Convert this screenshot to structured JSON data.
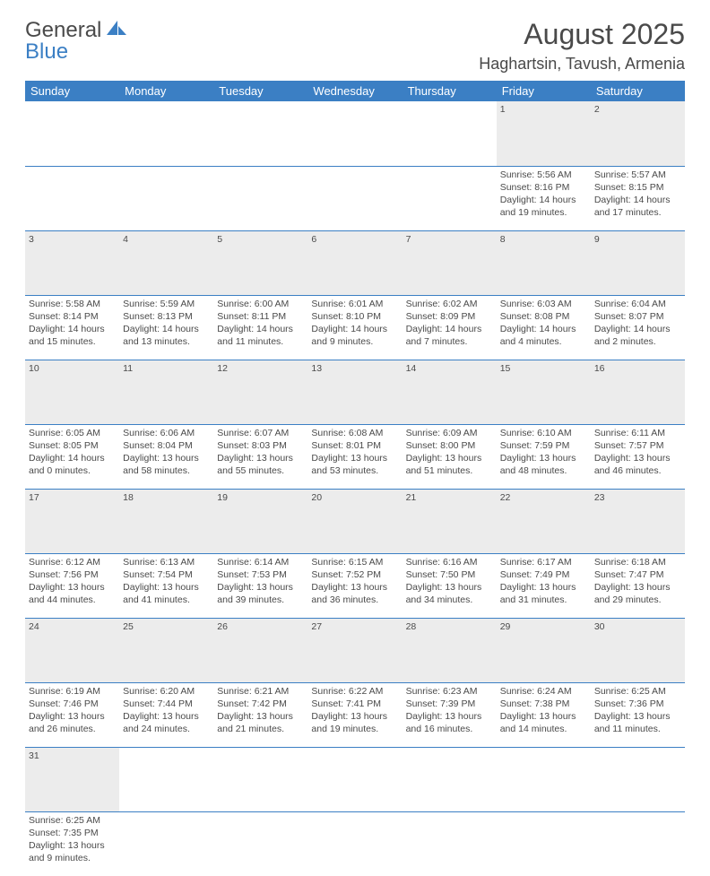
{
  "logo": {
    "part1": "General",
    "part2": "Blue"
  },
  "title": "August 2025",
  "location": "Haghartsin, Tavush, Armenia",
  "colors": {
    "header_bg": "#3b7fc4",
    "header_fg": "#ffffff",
    "daynum_bg": "#ececec",
    "text": "#4a4a4a",
    "rule": "#3b7fc4"
  },
  "weekdays": [
    "Sunday",
    "Monday",
    "Tuesday",
    "Wednesday",
    "Thursday",
    "Friday",
    "Saturday"
  ],
  "weeks": [
    [
      null,
      null,
      null,
      null,
      null,
      {
        "n": "1",
        "sr": "Sunrise: 5:56 AM",
        "ss": "Sunset: 8:16 PM",
        "dl": "Daylight: 14 hours and 19 minutes."
      },
      {
        "n": "2",
        "sr": "Sunrise: 5:57 AM",
        "ss": "Sunset: 8:15 PM",
        "dl": "Daylight: 14 hours and 17 minutes."
      }
    ],
    [
      {
        "n": "3",
        "sr": "Sunrise: 5:58 AM",
        "ss": "Sunset: 8:14 PM",
        "dl": "Daylight: 14 hours and 15 minutes."
      },
      {
        "n": "4",
        "sr": "Sunrise: 5:59 AM",
        "ss": "Sunset: 8:13 PM",
        "dl": "Daylight: 14 hours and 13 minutes."
      },
      {
        "n": "5",
        "sr": "Sunrise: 6:00 AM",
        "ss": "Sunset: 8:11 PM",
        "dl": "Daylight: 14 hours and 11 minutes."
      },
      {
        "n": "6",
        "sr": "Sunrise: 6:01 AM",
        "ss": "Sunset: 8:10 PM",
        "dl": "Daylight: 14 hours and 9 minutes."
      },
      {
        "n": "7",
        "sr": "Sunrise: 6:02 AM",
        "ss": "Sunset: 8:09 PM",
        "dl": "Daylight: 14 hours and 7 minutes."
      },
      {
        "n": "8",
        "sr": "Sunrise: 6:03 AM",
        "ss": "Sunset: 8:08 PM",
        "dl": "Daylight: 14 hours and 4 minutes."
      },
      {
        "n": "9",
        "sr": "Sunrise: 6:04 AM",
        "ss": "Sunset: 8:07 PM",
        "dl": "Daylight: 14 hours and 2 minutes."
      }
    ],
    [
      {
        "n": "10",
        "sr": "Sunrise: 6:05 AM",
        "ss": "Sunset: 8:05 PM",
        "dl": "Daylight: 14 hours and 0 minutes."
      },
      {
        "n": "11",
        "sr": "Sunrise: 6:06 AM",
        "ss": "Sunset: 8:04 PM",
        "dl": "Daylight: 13 hours and 58 minutes."
      },
      {
        "n": "12",
        "sr": "Sunrise: 6:07 AM",
        "ss": "Sunset: 8:03 PM",
        "dl": "Daylight: 13 hours and 55 minutes."
      },
      {
        "n": "13",
        "sr": "Sunrise: 6:08 AM",
        "ss": "Sunset: 8:01 PM",
        "dl": "Daylight: 13 hours and 53 minutes."
      },
      {
        "n": "14",
        "sr": "Sunrise: 6:09 AM",
        "ss": "Sunset: 8:00 PM",
        "dl": "Daylight: 13 hours and 51 minutes."
      },
      {
        "n": "15",
        "sr": "Sunrise: 6:10 AM",
        "ss": "Sunset: 7:59 PM",
        "dl": "Daylight: 13 hours and 48 minutes."
      },
      {
        "n": "16",
        "sr": "Sunrise: 6:11 AM",
        "ss": "Sunset: 7:57 PM",
        "dl": "Daylight: 13 hours and 46 minutes."
      }
    ],
    [
      {
        "n": "17",
        "sr": "Sunrise: 6:12 AM",
        "ss": "Sunset: 7:56 PM",
        "dl": "Daylight: 13 hours and 44 minutes."
      },
      {
        "n": "18",
        "sr": "Sunrise: 6:13 AM",
        "ss": "Sunset: 7:54 PM",
        "dl": "Daylight: 13 hours and 41 minutes."
      },
      {
        "n": "19",
        "sr": "Sunrise: 6:14 AM",
        "ss": "Sunset: 7:53 PM",
        "dl": "Daylight: 13 hours and 39 minutes."
      },
      {
        "n": "20",
        "sr": "Sunrise: 6:15 AM",
        "ss": "Sunset: 7:52 PM",
        "dl": "Daylight: 13 hours and 36 minutes."
      },
      {
        "n": "21",
        "sr": "Sunrise: 6:16 AM",
        "ss": "Sunset: 7:50 PM",
        "dl": "Daylight: 13 hours and 34 minutes."
      },
      {
        "n": "22",
        "sr": "Sunrise: 6:17 AM",
        "ss": "Sunset: 7:49 PM",
        "dl": "Daylight: 13 hours and 31 minutes."
      },
      {
        "n": "23",
        "sr": "Sunrise: 6:18 AM",
        "ss": "Sunset: 7:47 PM",
        "dl": "Daylight: 13 hours and 29 minutes."
      }
    ],
    [
      {
        "n": "24",
        "sr": "Sunrise: 6:19 AM",
        "ss": "Sunset: 7:46 PM",
        "dl": "Daylight: 13 hours and 26 minutes."
      },
      {
        "n": "25",
        "sr": "Sunrise: 6:20 AM",
        "ss": "Sunset: 7:44 PM",
        "dl": "Daylight: 13 hours and 24 minutes."
      },
      {
        "n": "26",
        "sr": "Sunrise: 6:21 AM",
        "ss": "Sunset: 7:42 PM",
        "dl": "Daylight: 13 hours and 21 minutes."
      },
      {
        "n": "27",
        "sr": "Sunrise: 6:22 AM",
        "ss": "Sunset: 7:41 PM",
        "dl": "Daylight: 13 hours and 19 minutes."
      },
      {
        "n": "28",
        "sr": "Sunrise: 6:23 AM",
        "ss": "Sunset: 7:39 PM",
        "dl": "Daylight: 13 hours and 16 minutes."
      },
      {
        "n": "29",
        "sr": "Sunrise: 6:24 AM",
        "ss": "Sunset: 7:38 PM",
        "dl": "Daylight: 13 hours and 14 minutes."
      },
      {
        "n": "30",
        "sr": "Sunrise: 6:25 AM",
        "ss": "Sunset: 7:36 PM",
        "dl": "Daylight: 13 hours and 11 minutes."
      }
    ],
    [
      {
        "n": "31",
        "sr": "Sunrise: 6:25 AM",
        "ss": "Sunset: 7:35 PM",
        "dl": "Daylight: 13 hours and 9 minutes."
      },
      null,
      null,
      null,
      null,
      null,
      null
    ]
  ]
}
